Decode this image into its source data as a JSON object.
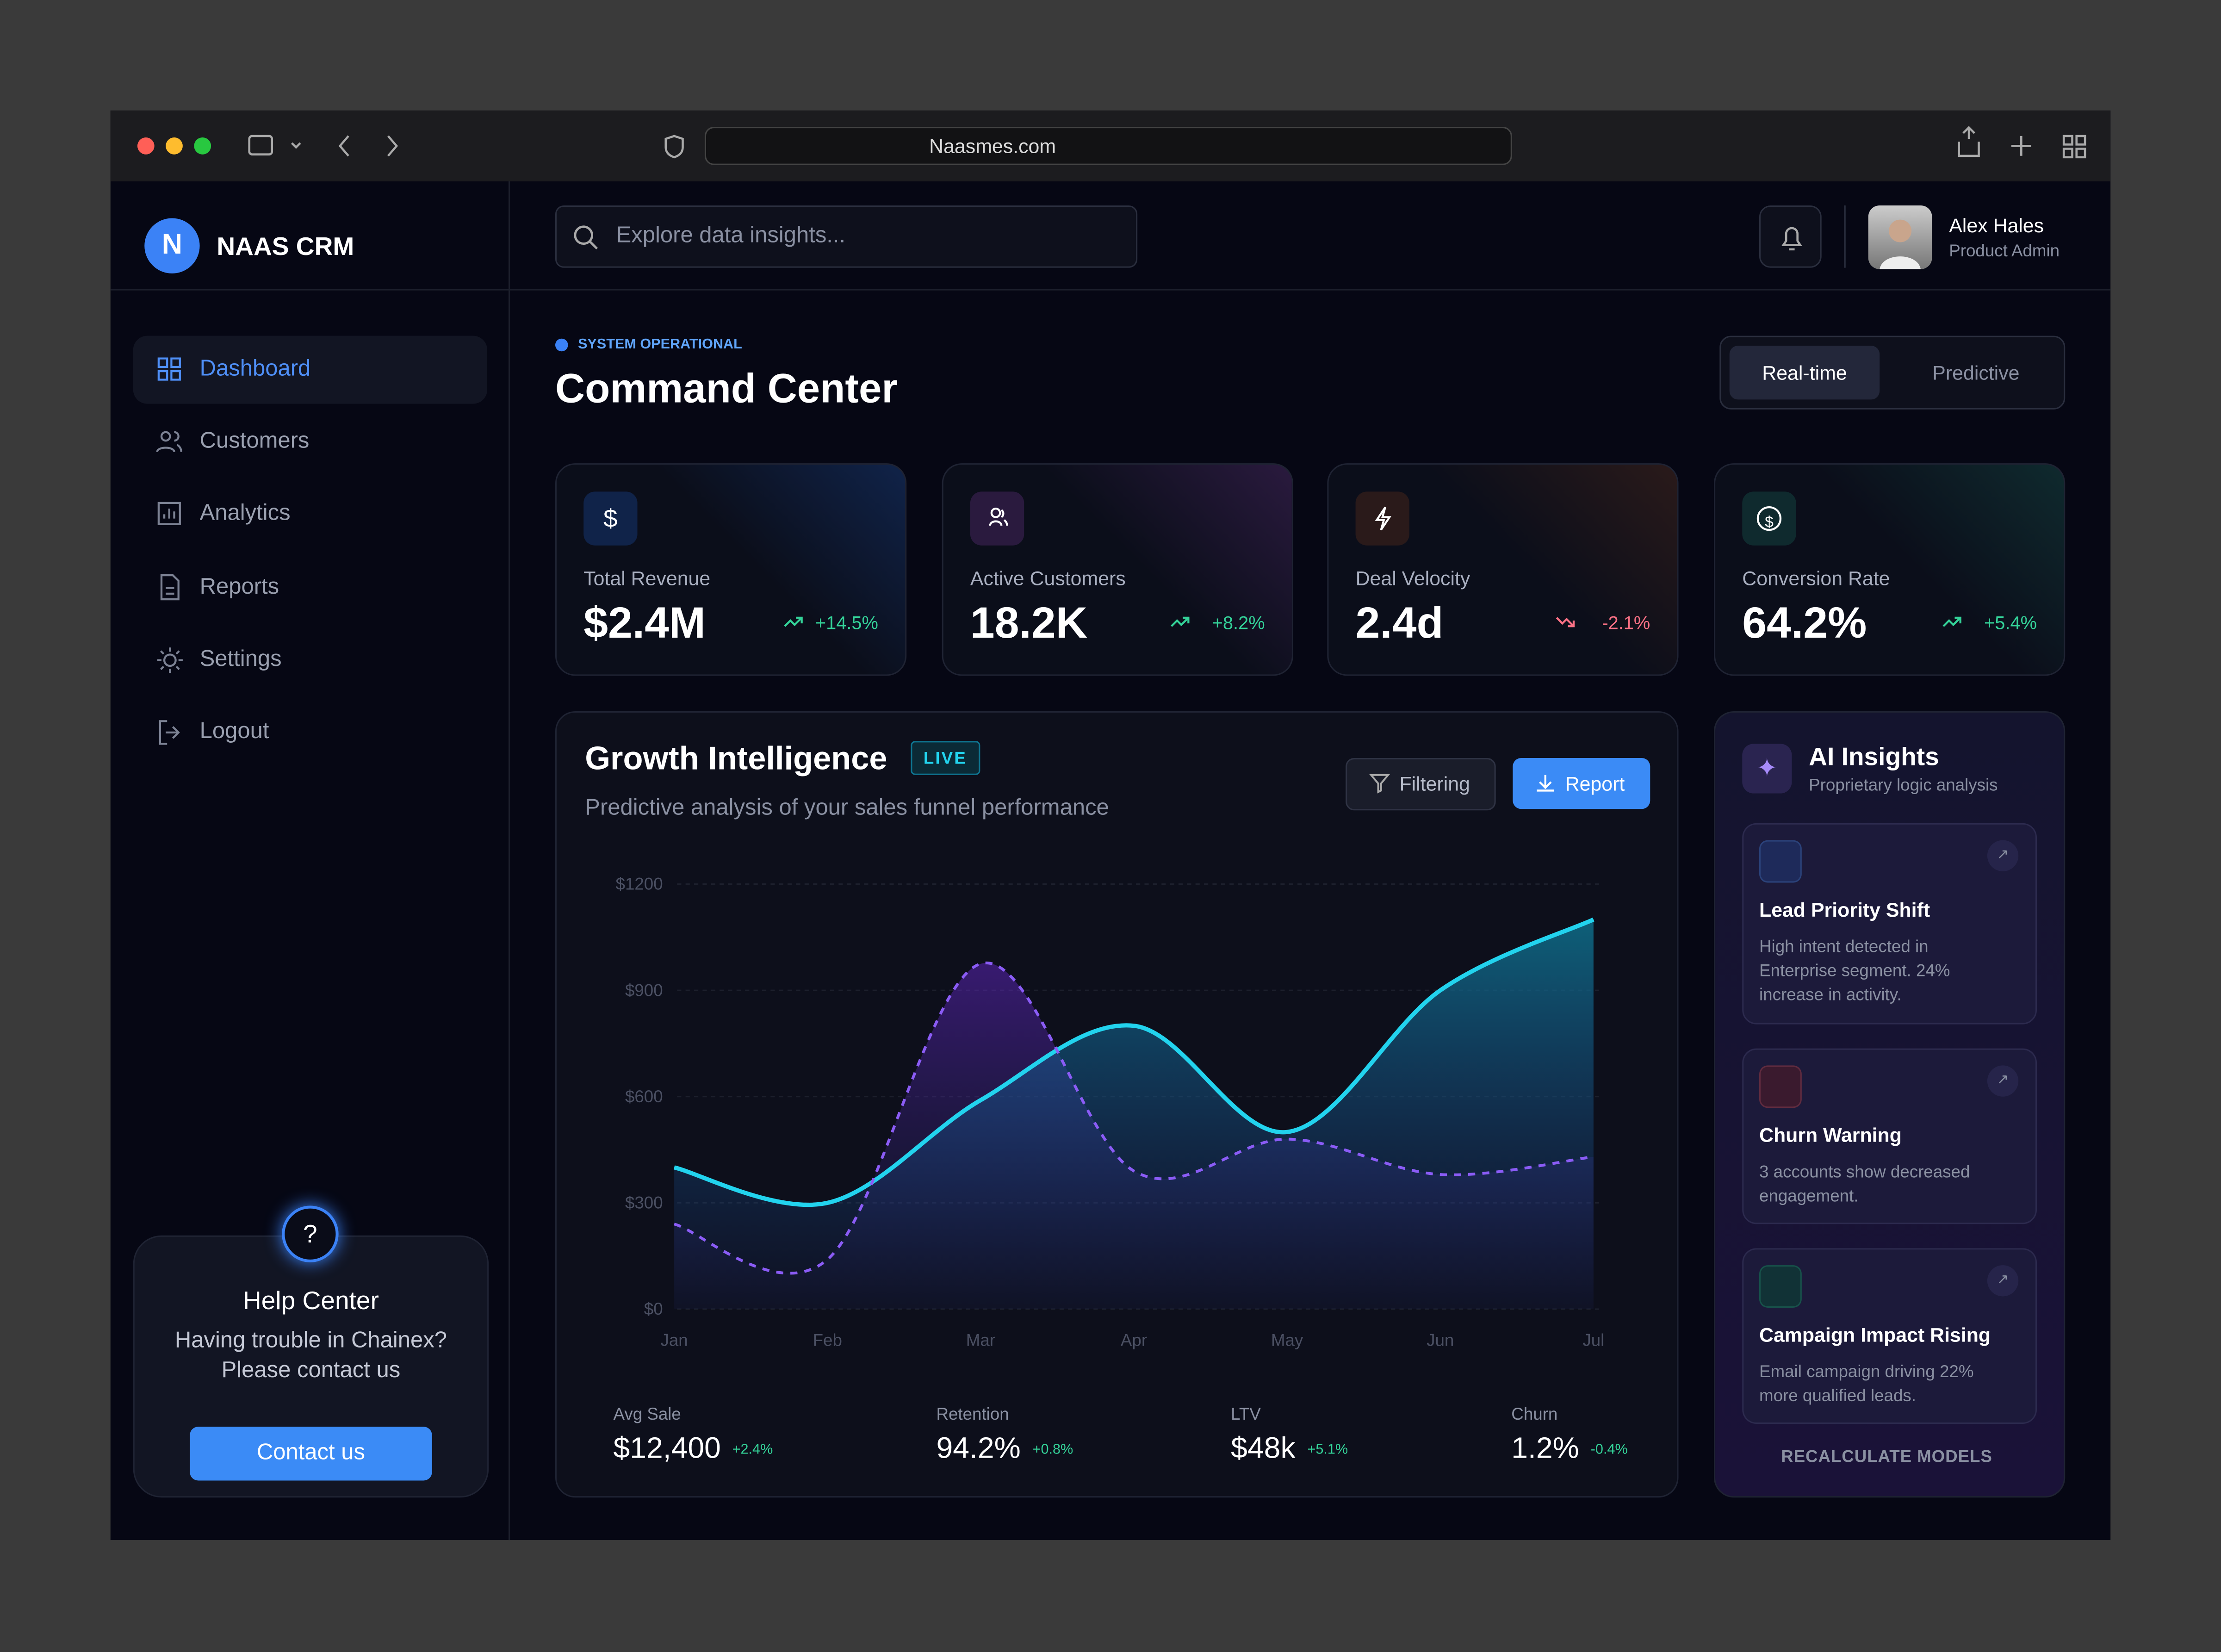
{
  "browser": {
    "url": "Naasmes.com"
  },
  "sidebar": {
    "brand_initial": "N",
    "brand": "NAAS CRM",
    "nav": [
      "Dashboard",
      "Customers",
      "Analytics",
      "Reports",
      "Settings",
      "Logout"
    ],
    "help": {
      "title": "Help Center",
      "lines": [
        "Having trouble in Chainex?",
        "Please contact us"
      ],
      "button": "Contact us"
    }
  },
  "header": {
    "search_placeholder": "Explore data insights...",
    "user": {
      "name": "Alex Hales",
      "role": "Product Admin"
    }
  },
  "page": {
    "status": "SYSTEM OPERATIONAL",
    "title": "Command Center",
    "toggle": [
      "Real-time",
      "Predictive"
    ]
  },
  "kpis": [
    {
      "label": "Total Revenue",
      "value": "$2.4M",
      "change": "+14.5%"
    },
    {
      "label": "Active Customers",
      "value": "18.2K",
      "change": "+8.2%"
    },
    {
      "label": "Deal Velocity",
      "value": "2.4d",
      "change": "-2.1%"
    },
    {
      "label": "Conversion Rate",
      "value": "64.2%",
      "change": "+5.4%"
    }
  ],
  "growth": {
    "title": "Growth Intelligence",
    "badge": "LIVE",
    "subtitle": "Predictive analysis of your sales funnel performance",
    "buttons": [
      "Filtering",
      "Report"
    ],
    "chart_data": {
      "type": "line",
      "categories": [
        "Jan",
        "Feb",
        "Mar",
        "Apr",
        "May",
        "Jun",
        "Jul"
      ],
      "ylim": [
        0,
        1200
      ],
      "yticks": [
        {
          "value": 0,
          "label": "$0"
        },
        {
          "value": 300,
          "label": "$300"
        },
        {
          "value": 600,
          "label": "$600"
        },
        {
          "value": 900,
          "label": "$900"
        },
        {
          "value": 1200,
          "label": "$1200"
        }
      ],
      "grid": true,
      "series": [
        {
          "color": "#22d3ee",
          "style": "solid",
          "values": [
            400,
            300,
            590,
            800,
            500,
            900,
            1100
          ]
        },
        {
          "color": "#8b5cf6",
          "style": "dashed",
          "values": [
            240,
            140,
            975,
            390,
            480,
            380,
            430
          ]
        }
      ]
    },
    "stats": [
      {
        "label": "Avg Sale",
        "value": "$12,400",
        "change": "+2.4%"
      },
      {
        "label": "Retention",
        "value": "94.2%",
        "change": "+0.8%"
      },
      {
        "label": "LTV",
        "value": "$48k",
        "change": "+5.1%"
      },
      {
        "label": "Churn",
        "value": "1.2%",
        "change": "-0.4%"
      }
    ]
  },
  "insights": {
    "title": "AI Insights",
    "subtitle": "Proprietary logic analysis",
    "cards": [
      {
        "title": "Lead Priority Shift",
        "text": "High intent detected in Enterprise segment. 24% increase in activity."
      },
      {
        "title": "Churn Warning",
        "text": "3 accounts show decreased engagement."
      },
      {
        "title": "Campaign Impact Rising",
        "text": "Email campaign driving 22% more qualified leads."
      }
    ],
    "action": "RECALCULATE MODELS"
  }
}
